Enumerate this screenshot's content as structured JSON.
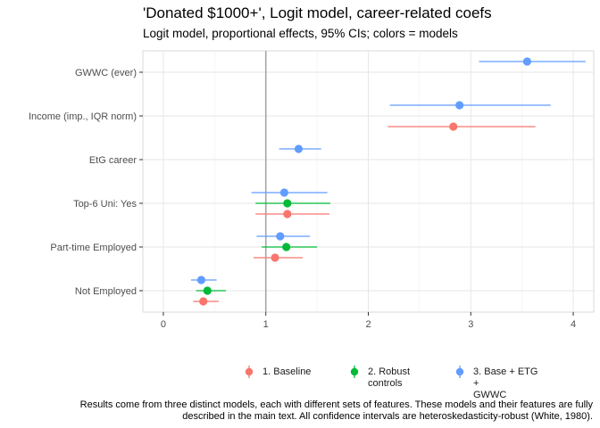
{
  "chart_data": {
    "type": "forest",
    "title": "'Donated $1000+', Logit model, career-related coefs",
    "subtitle": "Logit model, proportional effects, 95% CIs; colors = models",
    "xlabel": "",
    "ylabel": "",
    "xlim": [
      -0.2,
      4.2
    ],
    "x_ticks": [
      0,
      1,
      2,
      3,
      4
    ],
    "x_tick_labels": [
      "0",
      "1",
      "2",
      "3",
      "4"
    ],
    "reference_line": 1,
    "categories": [
      "GWWC (ever)",
      "Income (imp., IQR norm)",
      "EtG career",
      "Top-6 Uni: Yes",
      "Part-time Employed",
      "Not Employed"
    ],
    "series": [
      {
        "name": "1. Baseline",
        "color": "#F8766D",
        "points": [
          {
            "category": "Income (imp., IQR norm)",
            "estimate": 2.83,
            "lower": 2.19,
            "upper": 3.63
          },
          {
            "category": "Top-6 Uni: Yes",
            "estimate": 1.21,
            "lower": 0.9,
            "upper": 1.62
          },
          {
            "category": "Part-time Employed",
            "estimate": 1.09,
            "lower": 0.88,
            "upper": 1.36
          },
          {
            "category": "Not Employed",
            "estimate": 0.39,
            "lower": 0.29,
            "upper": 0.54
          }
        ]
      },
      {
        "name": "2. Robust controls",
        "color": "#00BA38",
        "points": [
          {
            "category": "Top-6 Uni: Yes",
            "estimate": 1.21,
            "lower": 0.9,
            "upper": 1.63
          },
          {
            "category": "Part-time Employed",
            "estimate": 1.2,
            "lower": 0.96,
            "upper": 1.5
          },
          {
            "category": "Not Employed",
            "estimate": 0.43,
            "lower": 0.32,
            "upper": 0.61
          }
        ]
      },
      {
        "name": "3. Base + ETG + GWWC",
        "color": "#619CFF",
        "points": [
          {
            "category": "GWWC (ever)",
            "estimate": 3.55,
            "lower": 3.08,
            "upper": 4.12
          },
          {
            "category": "Income (imp., IQR norm)",
            "estimate": 2.89,
            "lower": 2.21,
            "upper": 3.78
          },
          {
            "category": "EtG career",
            "estimate": 1.32,
            "lower": 1.13,
            "upper": 1.54
          },
          {
            "category": "Top-6 Uni: Yes",
            "estimate": 1.18,
            "lower": 0.86,
            "upper": 1.6
          },
          {
            "category": "Part-time Employed",
            "estimate": 1.14,
            "lower": 0.91,
            "upper": 1.43
          },
          {
            "category": "Not Employed",
            "estimate": 0.37,
            "lower": 0.27,
            "upper": 0.52
          }
        ]
      }
    ],
    "legend": {
      "position": "bottom",
      "items": [
        {
          "line1": "1. Baseline",
          "line2": "",
          "color": "#F8766D"
        },
        {
          "line1": "2. Robust",
          "line2": "controls",
          "color": "#00BA38"
        },
        {
          "line1": "3. Base + ETG +",
          "line2": "GWWC",
          "color": "#619CFF"
        }
      ]
    },
    "caption_lines": [
      "Results come from three distinct models, each with different sets of features. These models and their features are fully",
      "described in the main text. All confidence intervals are heteroskedasticity-robust (White, 1980)."
    ]
  }
}
